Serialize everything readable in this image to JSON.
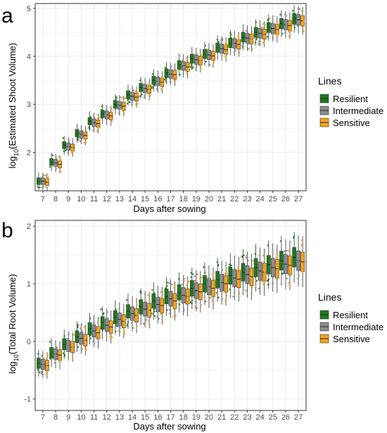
{
  "panels": [
    {
      "letter": "a",
      "xlabel": "Days after sowing",
      "ylabel_main": "log",
      "ylabel_sub": "10",
      "ylabel_rest": "(Estimated Shoot Volume)",
      "legend_title": "Lines",
      "legend_items": [
        "Resilient",
        "Intermediate",
        "Sensitive"
      ]
    },
    {
      "letter": "b",
      "xlabel": "Days after sowing",
      "ylabel_main": "log",
      "ylabel_sub": "10",
      "ylabel_rest": "(Total Root Volume)",
      "legend_title": "Lines",
      "legend_items": [
        "Resilient",
        "Intermediate",
        "Sensitive"
      ]
    }
  ],
  "colors": {
    "Resilient": "#1f7a1f",
    "Intermediate": "#8c8c8c",
    "Sensitive": "#f5a31a",
    "grid": "#ebebeb",
    "panel_border": "#333333"
  },
  "chart_data": [
    {
      "type": "box",
      "title": "",
      "xlabel": "Days after sowing",
      "ylabel": "log10(Estimated Shoot Volume)",
      "categories": [
        "7",
        "8",
        "9",
        "10",
        "11",
        "12",
        "13",
        "14",
        "15",
        "16",
        "17",
        "18",
        "19",
        "20",
        "21",
        "22",
        "23",
        "24",
        "25",
        "26",
        "27"
      ],
      "ylim": [
        1.2,
        5.1
      ],
      "yticks": [
        2,
        3,
        4,
        5
      ],
      "grid": true,
      "legend_position": "right",
      "series": [
        {
          "name": "Resilient",
          "medians": [
            1.4,
            1.8,
            2.15,
            2.4,
            2.65,
            2.8,
            3.0,
            3.2,
            3.35,
            3.5,
            3.65,
            3.82,
            3.95,
            4.05,
            4.18,
            4.28,
            4.4,
            4.5,
            4.6,
            4.68,
            4.78
          ]
        },
        {
          "name": "Intermediate",
          "medians": [
            1.4,
            1.78,
            2.12,
            2.37,
            2.62,
            2.78,
            2.98,
            3.17,
            3.33,
            3.48,
            3.63,
            3.8,
            3.93,
            4.03,
            4.16,
            4.27,
            4.38,
            4.48,
            4.58,
            4.66,
            4.76
          ]
        },
        {
          "name": "Sensitive",
          "medians": [
            1.38,
            1.75,
            2.1,
            2.35,
            2.6,
            2.76,
            2.96,
            3.15,
            3.31,
            3.46,
            3.62,
            3.78,
            3.91,
            4.01,
            4.14,
            4.25,
            4.36,
            4.46,
            4.56,
            4.64,
            4.74
          ]
        }
      ]
    },
    {
      "type": "box",
      "title": "",
      "xlabel": "Days after sowing",
      "ylabel": "log10(Total Root Volume)",
      "categories": [
        "7",
        "8",
        "9",
        "10",
        "11",
        "12",
        "13",
        "14",
        "15",
        "16",
        "17",
        "18",
        "19",
        "20",
        "21",
        "22",
        "23",
        "24",
        "25",
        "26",
        "27"
      ],
      "ylim": [
        -1.2,
        2.1
      ],
      "yticks": [
        -1,
        0,
        1,
        2
      ],
      "grid": true,
      "legend_position": "right",
      "series": [
        {
          "name": "Resilient",
          "medians": [
            -0.38,
            -0.2,
            -0.05,
            0.08,
            0.22,
            0.32,
            0.42,
            0.52,
            0.6,
            0.7,
            0.78,
            0.85,
            0.92,
            1.0,
            1.07,
            1.14,
            1.2,
            1.28,
            1.33,
            1.4,
            1.46
          ]
        },
        {
          "name": "Intermediate",
          "medians": [
            -0.4,
            -0.22,
            -0.08,
            0.05,
            0.18,
            0.28,
            0.38,
            0.48,
            0.56,
            0.64,
            0.74,
            0.8,
            0.88,
            0.95,
            1.02,
            1.1,
            1.16,
            1.22,
            1.28,
            1.34,
            1.4
          ]
        },
        {
          "name": "Sensitive",
          "medians": [
            -0.42,
            -0.24,
            -0.1,
            0.02,
            0.15,
            0.25,
            0.35,
            0.45,
            0.54,
            0.62,
            0.7,
            0.78,
            0.86,
            0.92,
            1.0,
            1.08,
            1.12,
            1.2,
            1.26,
            1.32,
            1.38
          ]
        }
      ]
    }
  ]
}
